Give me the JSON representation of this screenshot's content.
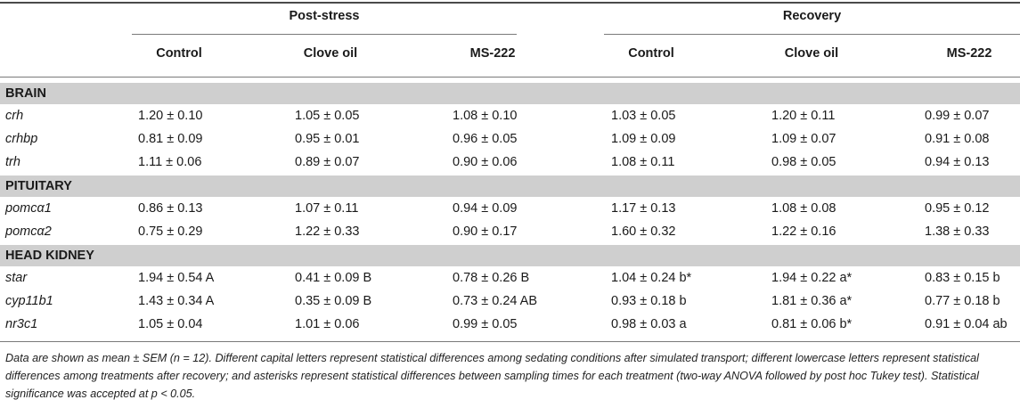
{
  "header": {
    "group_poststress": "Post-stress",
    "group_recovery": "Recovery",
    "columns": [
      "Control",
      "Clove oil",
      "MS-222",
      "Control",
      "Clove oil",
      "MS-222"
    ]
  },
  "sections": [
    {
      "title": "BRAIN",
      "rows": [
        {
          "gene": "crh",
          "values": [
            "1.20 ± 0.10",
            "1.05 ± 0.05",
            "1.08 ± 0.10",
            "1.03 ± 0.05",
            "1.20 ± 0.11",
            "0.99 ± 0.07"
          ]
        },
        {
          "gene": "crhbp",
          "values": [
            "0.81 ± 0.09",
            "0.95 ± 0.01",
            "0.96 ± 0.05",
            "1.09 ± 0.09",
            "1.09 ± 0.07",
            "0.91 ± 0.08"
          ]
        },
        {
          "gene": "trh",
          "values": [
            "1.11 ± 0.06",
            "0.89 ± 0.07",
            "0.90 ± 0.06",
            "1.08 ± 0.11",
            "0.98 ± 0.05",
            "0.94 ± 0.13"
          ]
        }
      ]
    },
    {
      "title": "PITUITARY",
      "rows": [
        {
          "gene": "pomcα1",
          "values": [
            "0.86 ± 0.13",
            "1.07 ± 0.11",
            "0.94 ± 0.09",
            "1.17 ± 0.13",
            "1.08 ± 0.08",
            "0.95 ± 0.12"
          ]
        },
        {
          "gene": "pomcα2",
          "values": [
            "0.75 ± 0.29",
            "1.22 ± 0.33",
            "0.90 ± 0.17",
            "1.60 ± 0.32",
            "1.22 ± 0.16",
            "1.38 ± 0.33"
          ]
        }
      ]
    },
    {
      "title": "HEAD KIDNEY",
      "rows": [
        {
          "gene": "star",
          "values": [
            "1.94 ± 0.54 A",
            "0.41 ± 0.09 B",
            "0.78 ± 0.26 B",
            "1.04 ± 0.24 b*",
            "1.94 ± 0.22 a*",
            "0.83 ± 0.15 b"
          ]
        },
        {
          "gene": "cyp11b1",
          "values": [
            "1.43 ± 0.34 A",
            "0.35 ± 0.09 B",
            "0.73 ± 0.24 AB",
            "0.93 ± 0.18 b",
            "1.81 ± 0.36 a*",
            "0.77 ± 0.18 b"
          ]
        },
        {
          "gene": "nr3c1",
          "values": [
            "1.05 ± 0.04",
            "1.01 ± 0.06",
            "0.99 ± 0.05",
            "0.98 ± 0.03 a",
            "0.81 ± 0.06 b*",
            "0.91 ± 0.04 ab"
          ]
        }
      ]
    }
  ],
  "footnote": "Data are shown as mean ± SEM (n = 12). Different capital letters represent statistical differences among sedating conditions after simulated transport; different lowercase letters represent statistical differences among treatments after recovery; and asterisks represent statistical differences between sampling times for each treatment (two-way ANOVA followed by post hoc Tukey test). Statistical significance was accepted at p < 0.05."
}
